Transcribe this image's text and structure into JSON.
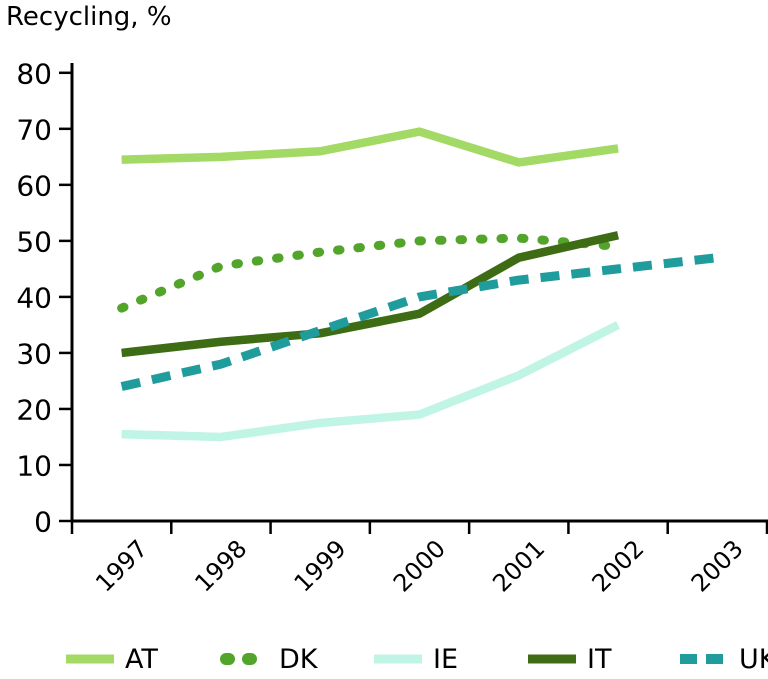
{
  "colors": {
    "axis": "#000000",
    "text": "#000000",
    "background": "#ffffff"
  },
  "chart_data": {
    "type": "line",
    "title": "Recycling, %",
    "xlabel": "",
    "ylabel": "Recycling, %",
    "x": [
      "1997",
      "1998",
      "1999",
      "2000",
      "2001",
      "2002",
      "2003"
    ],
    "ylim": [
      0,
      80
    ],
    "ytick_step": 10,
    "y_ticks": [
      0,
      10,
      20,
      30,
      40,
      50,
      60,
      70,
      80
    ],
    "grid": false,
    "legend_position": "bottom",
    "series": [
      {
        "name": "AT",
        "style": "solid",
        "color": "#a3d965",
        "values": [
          64.5,
          65,
          66,
          69.5,
          64,
          66.5,
          null
        ]
      },
      {
        "name": "DK",
        "style": "dotted",
        "color": "#52a52a",
        "values": [
          38,
          45.5,
          48,
          50,
          50.5,
          49,
          null
        ]
      },
      {
        "name": "IE",
        "style": "solid",
        "color": "#c0f4e4",
        "values": [
          15.5,
          15,
          17.5,
          19,
          26,
          35,
          null
        ]
      },
      {
        "name": "IT",
        "style": "solid",
        "color": "#3e6c14",
        "values": [
          30,
          32,
          33.5,
          37,
          47,
          51,
          null
        ]
      },
      {
        "name": "UK",
        "style": "dashed",
        "color": "#219c9d",
        "values": [
          24,
          28,
          34,
          40,
          43,
          45,
          47
        ]
      }
    ]
  },
  "legend_item_lefts": [
    64,
    218,
    372,
    526,
    678
  ]
}
